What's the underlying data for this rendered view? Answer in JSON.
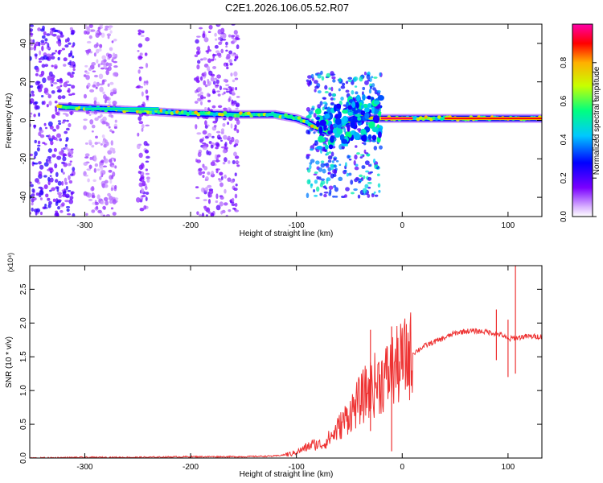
{
  "title": "C2E1.2026.106.05.52.R07",
  "chart_data": [
    {
      "type": "heatmap",
      "xlabel": "Height of straight line (km)",
      "ylabel": "Frequency (Hz)",
      "xlim": [
        -352,
        132
      ],
      "ylim": [
        -50,
        50
      ],
      "xticks": [
        -300,
        -200,
        -100,
        0,
        100
      ],
      "yticks": [
        -40,
        -20,
        0,
        20,
        40
      ],
      "colorbar": {
        "label": "Normalized spectral amplitude",
        "range": [
          0,
          1
        ],
        "ticks": [
          "0.0",
          "0.2",
          "0.4",
          "0.6",
          "0.8"
        ]
      },
      "ridge": {
        "x": [
          -325,
          -300,
          -250,
          -200,
          -150,
          -120,
          -100,
          -90,
          -80,
          -70,
          -60,
          -50,
          -40,
          -30,
          -20,
          0,
          50,
          100,
          132
        ],
        "y": [
          7,
          6.5,
          5,
          3.5,
          3,
          3,
          1,
          -1,
          -4,
          -6,
          -3,
          0,
          2,
          1,
          1,
          1,
          1,
          1,
          1
        ]
      },
      "hot_segments": [
        {
          "x": [
            -20,
            10
          ],
          "y": 1,
          "amplitude": 0.95
        },
        {
          "x": [
            40,
            132
          ],
          "y": 1,
          "amplitude": 0.9
        },
        {
          "x": [
            -300,
            -230
          ],
          "y": 6,
          "amplitude": 0.55
        }
      ],
      "scattered_energy": [
        {
          "x": [
            -352,
            -310
          ],
          "y": [
            -50,
            50
          ],
          "amplitude": 0.2
        },
        {
          "x": [
            -300,
            -270
          ],
          "y": [
            -50,
            50
          ],
          "amplitude": 0.1
        },
        {
          "x": [
            -250,
            -240
          ],
          "y": [
            -50,
            50
          ],
          "amplitude": 0.15
        },
        {
          "x": [
            -195,
            -155
          ],
          "y": [
            -50,
            50
          ],
          "amplitude": 0.15
        },
        {
          "x": [
            -90,
            -20
          ],
          "y": [
            -40,
            25
          ],
          "amplitude": 0.4
        }
      ]
    },
    {
      "type": "line",
      "xlabel": "Height of straight line (km)",
      "ylabel": "SNR (10 * v/v)",
      "y_multiplier": "(x10⁴)",
      "xlim": [
        -352,
        132
      ],
      "ylim": [
        0,
        2.85
      ],
      "xticks": [
        -300,
        -200,
        -100,
        0,
        100
      ],
      "yticks": [
        "0.0",
        "0.5",
        "1.0",
        "1.5",
        "2.0",
        "2.5"
      ],
      "color": "#ee3333",
      "series": [
        {
          "x": [
            -352,
            -300,
            -250,
            -200,
            -150,
            -120,
            -105,
            -95,
            -85,
            -75,
            -65,
            -55,
            -45,
            -35,
            -25,
            -15,
            -5,
            0,
            10,
            20,
            30,
            40,
            50,
            60,
            70,
            80,
            90,
            95,
            100,
            105,
            108,
            115,
            132
          ],
          "y": [
            0.0,
            0.01,
            0.01,
            0.02,
            0.02,
            0.03,
            0.06,
            0.12,
            0.2,
            0.2,
            0.35,
            0.55,
            0.75,
            0.95,
            1.1,
            1.2,
            1.35,
            1.42,
            1.55,
            1.65,
            1.72,
            1.78,
            1.85,
            1.88,
            1.88,
            1.87,
            1.84,
            1.82,
            1.75,
            1.78,
            1.78,
            1.8,
            1.8
          ]
        }
      ],
      "spikes": [
        {
          "x": 89,
          "y": [
            1.45,
            2.2
          ]
        },
        {
          "x": 100,
          "y": [
            1.2,
            2.05
          ]
        },
        {
          "x": 107,
          "y": [
            1.25,
            2.9
          ]
        },
        {
          "x": -10,
          "y": [
            0.1,
            1.95
          ]
        },
        {
          "x": -30,
          "y": [
            0.4,
            1.9
          ]
        }
      ]
    }
  ]
}
